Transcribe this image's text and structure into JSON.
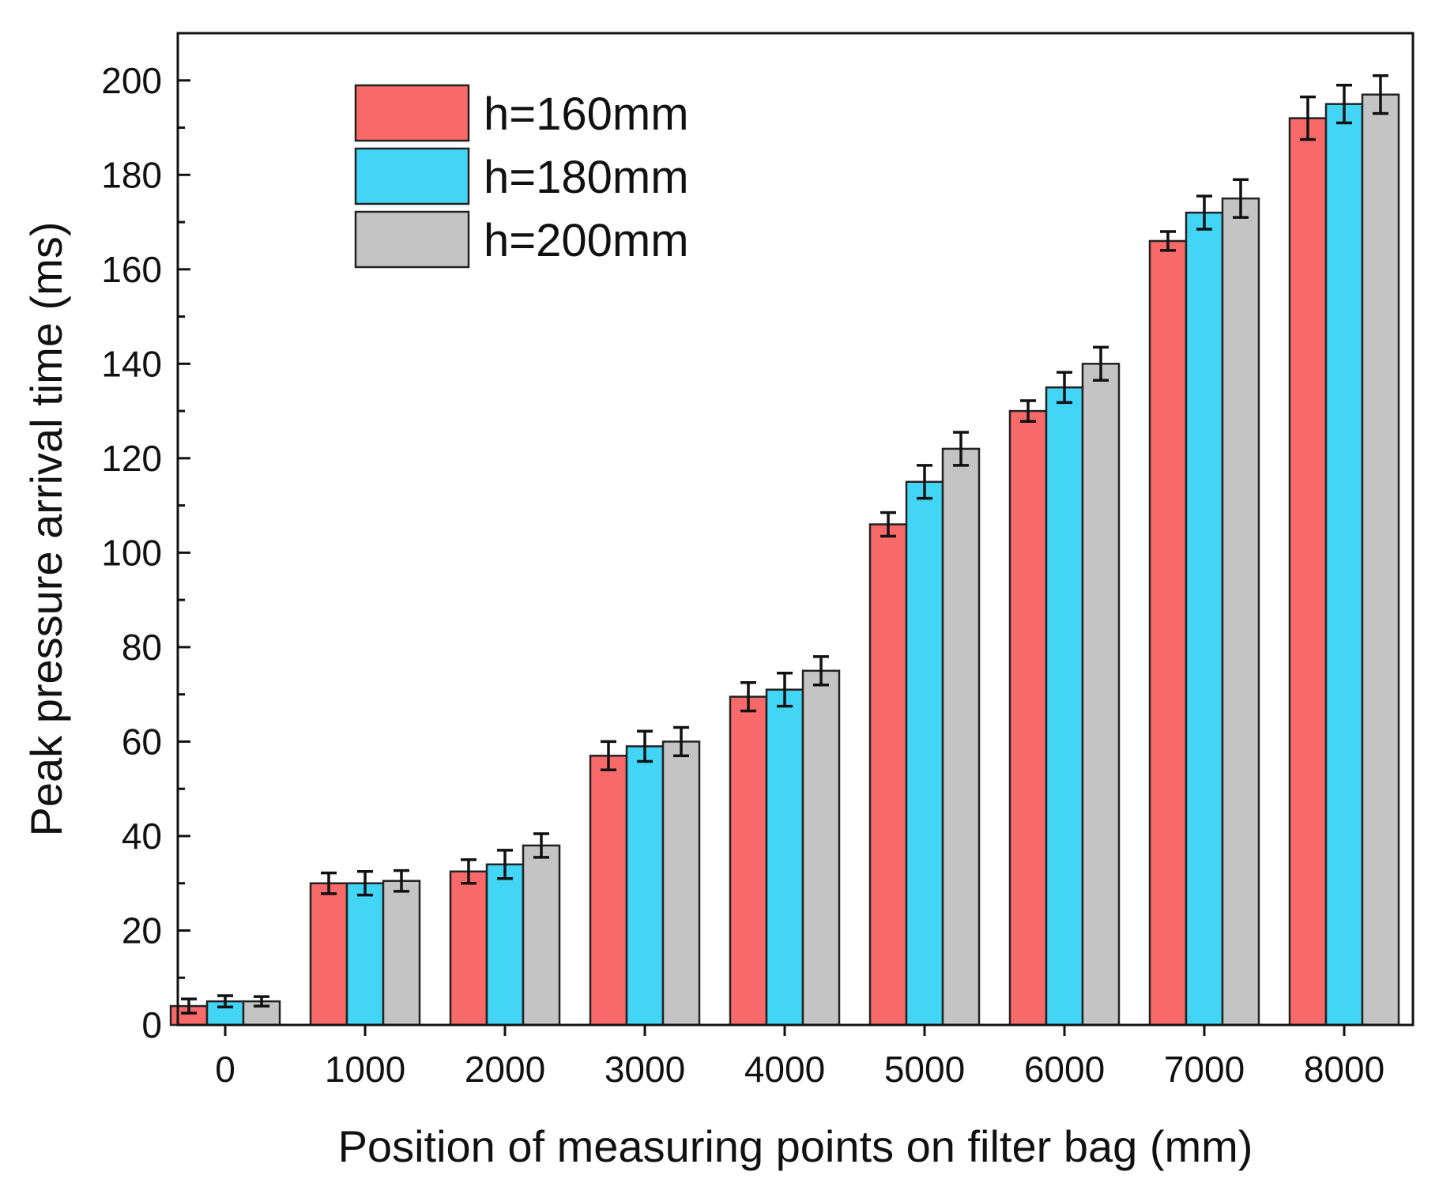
{
  "chart_data": {
    "type": "bar",
    "title": "",
    "xlabel": "Position of measuring points on filter bag (mm)",
    "ylabel": "Peak pressure arrival time (ms)",
    "categories": [
      "0",
      "1000",
      "2000",
      "3000",
      "4000",
      "5000",
      "6000",
      "7000",
      "8000"
    ],
    "ylim": [
      0,
      210
    ],
    "yticks": [
      0,
      20,
      40,
      60,
      80,
      100,
      120,
      140,
      160,
      180,
      200
    ],
    "legend_position": "top-left",
    "grid": false,
    "series": [
      {
        "name": "h=160mm",
        "color": "#f86a6a",
        "values": [
          4,
          30,
          32.5,
          57,
          69.5,
          106,
          130,
          166,
          192
        ],
        "errors": [
          1.5,
          2.2,
          2.5,
          3,
          3,
          2.5,
          2.2,
          2,
          4.5
        ]
      },
      {
        "name": "h=180mm",
        "color": "#42d5f5",
        "values": [
          5,
          30,
          34,
          59,
          71,
          115,
          135,
          172,
          195
        ],
        "errors": [
          1.2,
          2.5,
          3,
          3.2,
          3.5,
          3.5,
          3.2,
          3.5,
          4
        ]
      },
      {
        "name": "h=200mm",
        "color": "#c4c4c4",
        "values": [
          5,
          30.5,
          38,
          60,
          75,
          122,
          140,
          175,
          197
        ],
        "errors": [
          1,
          2.2,
          2.5,
          3,
          3,
          3.5,
          3.5,
          4,
          4
        ]
      }
    ]
  }
}
